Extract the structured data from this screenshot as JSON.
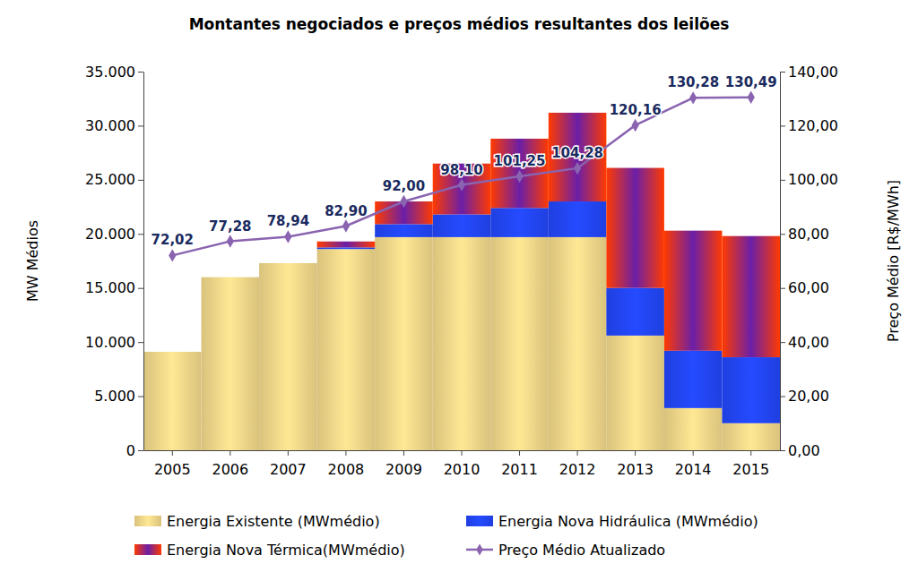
{
  "chart_data": {
    "type": "bar",
    "title": "Montantes negociados e preços médios resultantes dos leilões",
    "y_label": "MW Médios",
    "y2_label": "Preço Médio [R$/MWh]",
    "categories": [
      "2005",
      "2006",
      "2007",
      "2008",
      "2009",
      "2010",
      "2011",
      "2012",
      "2013",
      "2014",
      "2015"
    ],
    "stacked": true,
    "grid": false,
    "legend": "bottom",
    "ylim": [
      0,
      35000
    ],
    "yticks": [
      0,
      {
        "value": 5000,
        "label": "5.000"
      },
      {
        "value": 10000,
        "label": "10.000"
      },
      {
        "value": 15000,
        "label": "15.000"
      },
      {
        "value": 20000,
        "label": "20.000"
      },
      {
        "value": 25000,
        "label": "25.000"
      },
      {
        "value": 30000,
        "label": "30.000"
      },
      {
        "value": 35000,
        "label": "35.000"
      }
    ],
    "y2lim": [
      0,
      140
    ],
    "y2ticks": [
      {
        "value": 0,
        "label": "0,00"
      },
      {
        "value": 20,
        "label": "20,00"
      },
      {
        "value": 40,
        "label": "40,00"
      },
      {
        "value": 60,
        "label": "60,00"
      },
      {
        "value": 80,
        "label": "80,00"
      },
      {
        "value": 100,
        "label": "100,00"
      },
      {
        "value": 120,
        "label": "120,00"
      },
      {
        "value": 140,
        "label": "140,00"
      }
    ],
    "series": [
      {
        "name": "Energia Existente (MWmédio)",
        "type": "bar",
        "color": "#d9c27c",
        "values": [
          9100,
          16000,
          17300,
          18600,
          19700,
          19700,
          19700,
          19700,
          10600,
          3900,
          2500
        ]
      },
      {
        "name": "Energia Nova Hidráulica (MWmédio)",
        "type": "bar",
        "color": "#1f3fe0",
        "values": [
          0,
          0,
          0,
          150,
          1200,
          2100,
          2700,
          3300,
          4400,
          5300,
          6100
        ]
      },
      {
        "name": "Energia Nova Térmica(MWmédio)",
        "type": "bar",
        "color": "#ff3a00",
        "values": [
          0,
          0,
          0,
          550,
          2100,
          4700,
          6400,
          8200,
          11100,
          11100,
          11200
        ]
      },
      {
        "name": "Preço Médio Atualizado",
        "type": "line",
        "axis": "y2",
        "color": "#8a64b0",
        "marker": "diamond",
        "data_labels": true,
        "values": [
          72.02,
          77.28,
          78.94,
          82.9,
          92.0,
          98.1,
          101.25,
          104.28,
          120.16,
          130.28,
          130.49
        ],
        "value_labels": [
          "72,02",
          "77,28",
          "78,94",
          "82,90",
          "92,00",
          "98,10",
          "101,25",
          "104,28",
          "120,16",
          "130,28",
          "130,49"
        ]
      }
    ]
  }
}
